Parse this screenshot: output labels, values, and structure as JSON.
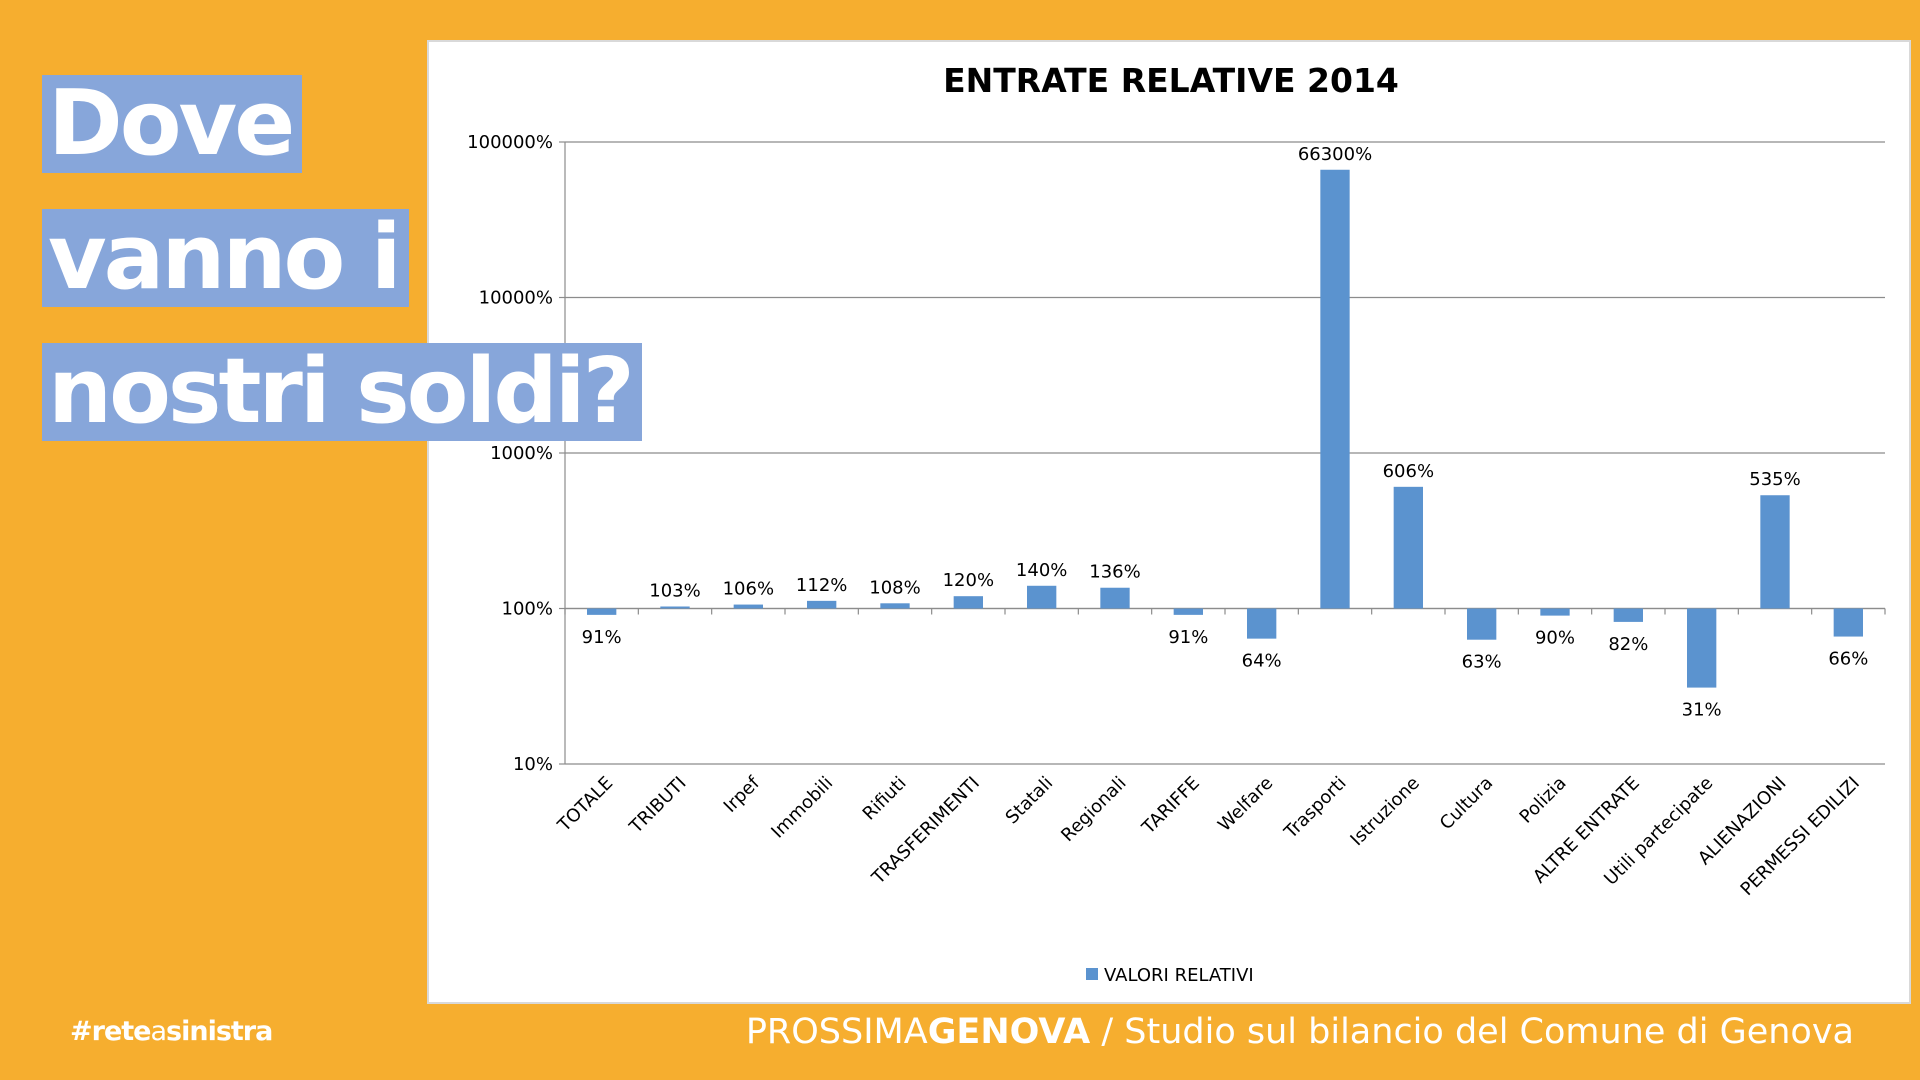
{
  "headline": {
    "line1": "Dove",
    "line2": "vanno i",
    "line3": "nostri soldi?"
  },
  "hashtag": {
    "prefix": "#rete",
    "middle": "a",
    "suffix": "sinistra"
  },
  "footer": {
    "brand_light": "PROSSIMA",
    "brand_bold": "GENOVA",
    "subtitle": " / Studio sul bilancio del Comune di Genova"
  },
  "colors": {
    "background": "#F6AE2F",
    "headline_box": "#87A6DA",
    "bar": "#5B93CF"
  },
  "chart_data": {
    "type": "bar",
    "title": "ENTRATE RELATIVE 2014",
    "y_scale": "log",
    "baseline": 100,
    "ylim": [
      10,
      100000
    ],
    "y_ticks": [
      10,
      100,
      1000,
      10000,
      100000
    ],
    "y_tick_labels": [
      "10%",
      "100%",
      "1000%",
      "10000%",
      "100000%"
    ],
    "grid": true,
    "legend": "bottom",
    "categories": [
      "TOTALE",
      "TRIBUTI",
      "Irpef",
      "Immobili",
      "Rifiuti",
      "TRASFERIMENTI",
      "Statali",
      "Regionali",
      "TARIFFE",
      "Welfare",
      "Trasporti",
      "Istruzione",
      "Cultura",
      "Polizia",
      "ALTRE ENTRATE",
      "Utili partecipate",
      "ALIENAZIONI",
      "PERMESSI EDILIZI"
    ],
    "series": [
      {
        "name": "VALORI RELATIVI",
        "values": [
          91,
          103,
          106,
          112,
          108,
          120,
          140,
          136,
          91,
          64,
          66300,
          606,
          63,
          90,
          82,
          31,
          535,
          66
        ],
        "labels": [
          "91%",
          "103%",
          "106%",
          "112%",
          "108%",
          "120%",
          "140%",
          "136%",
          "91%",
          "64%",
          "66300%",
          "606%",
          "63%",
          "90%",
          "82%",
          "31%",
          "535%",
          "66%"
        ]
      }
    ]
  }
}
